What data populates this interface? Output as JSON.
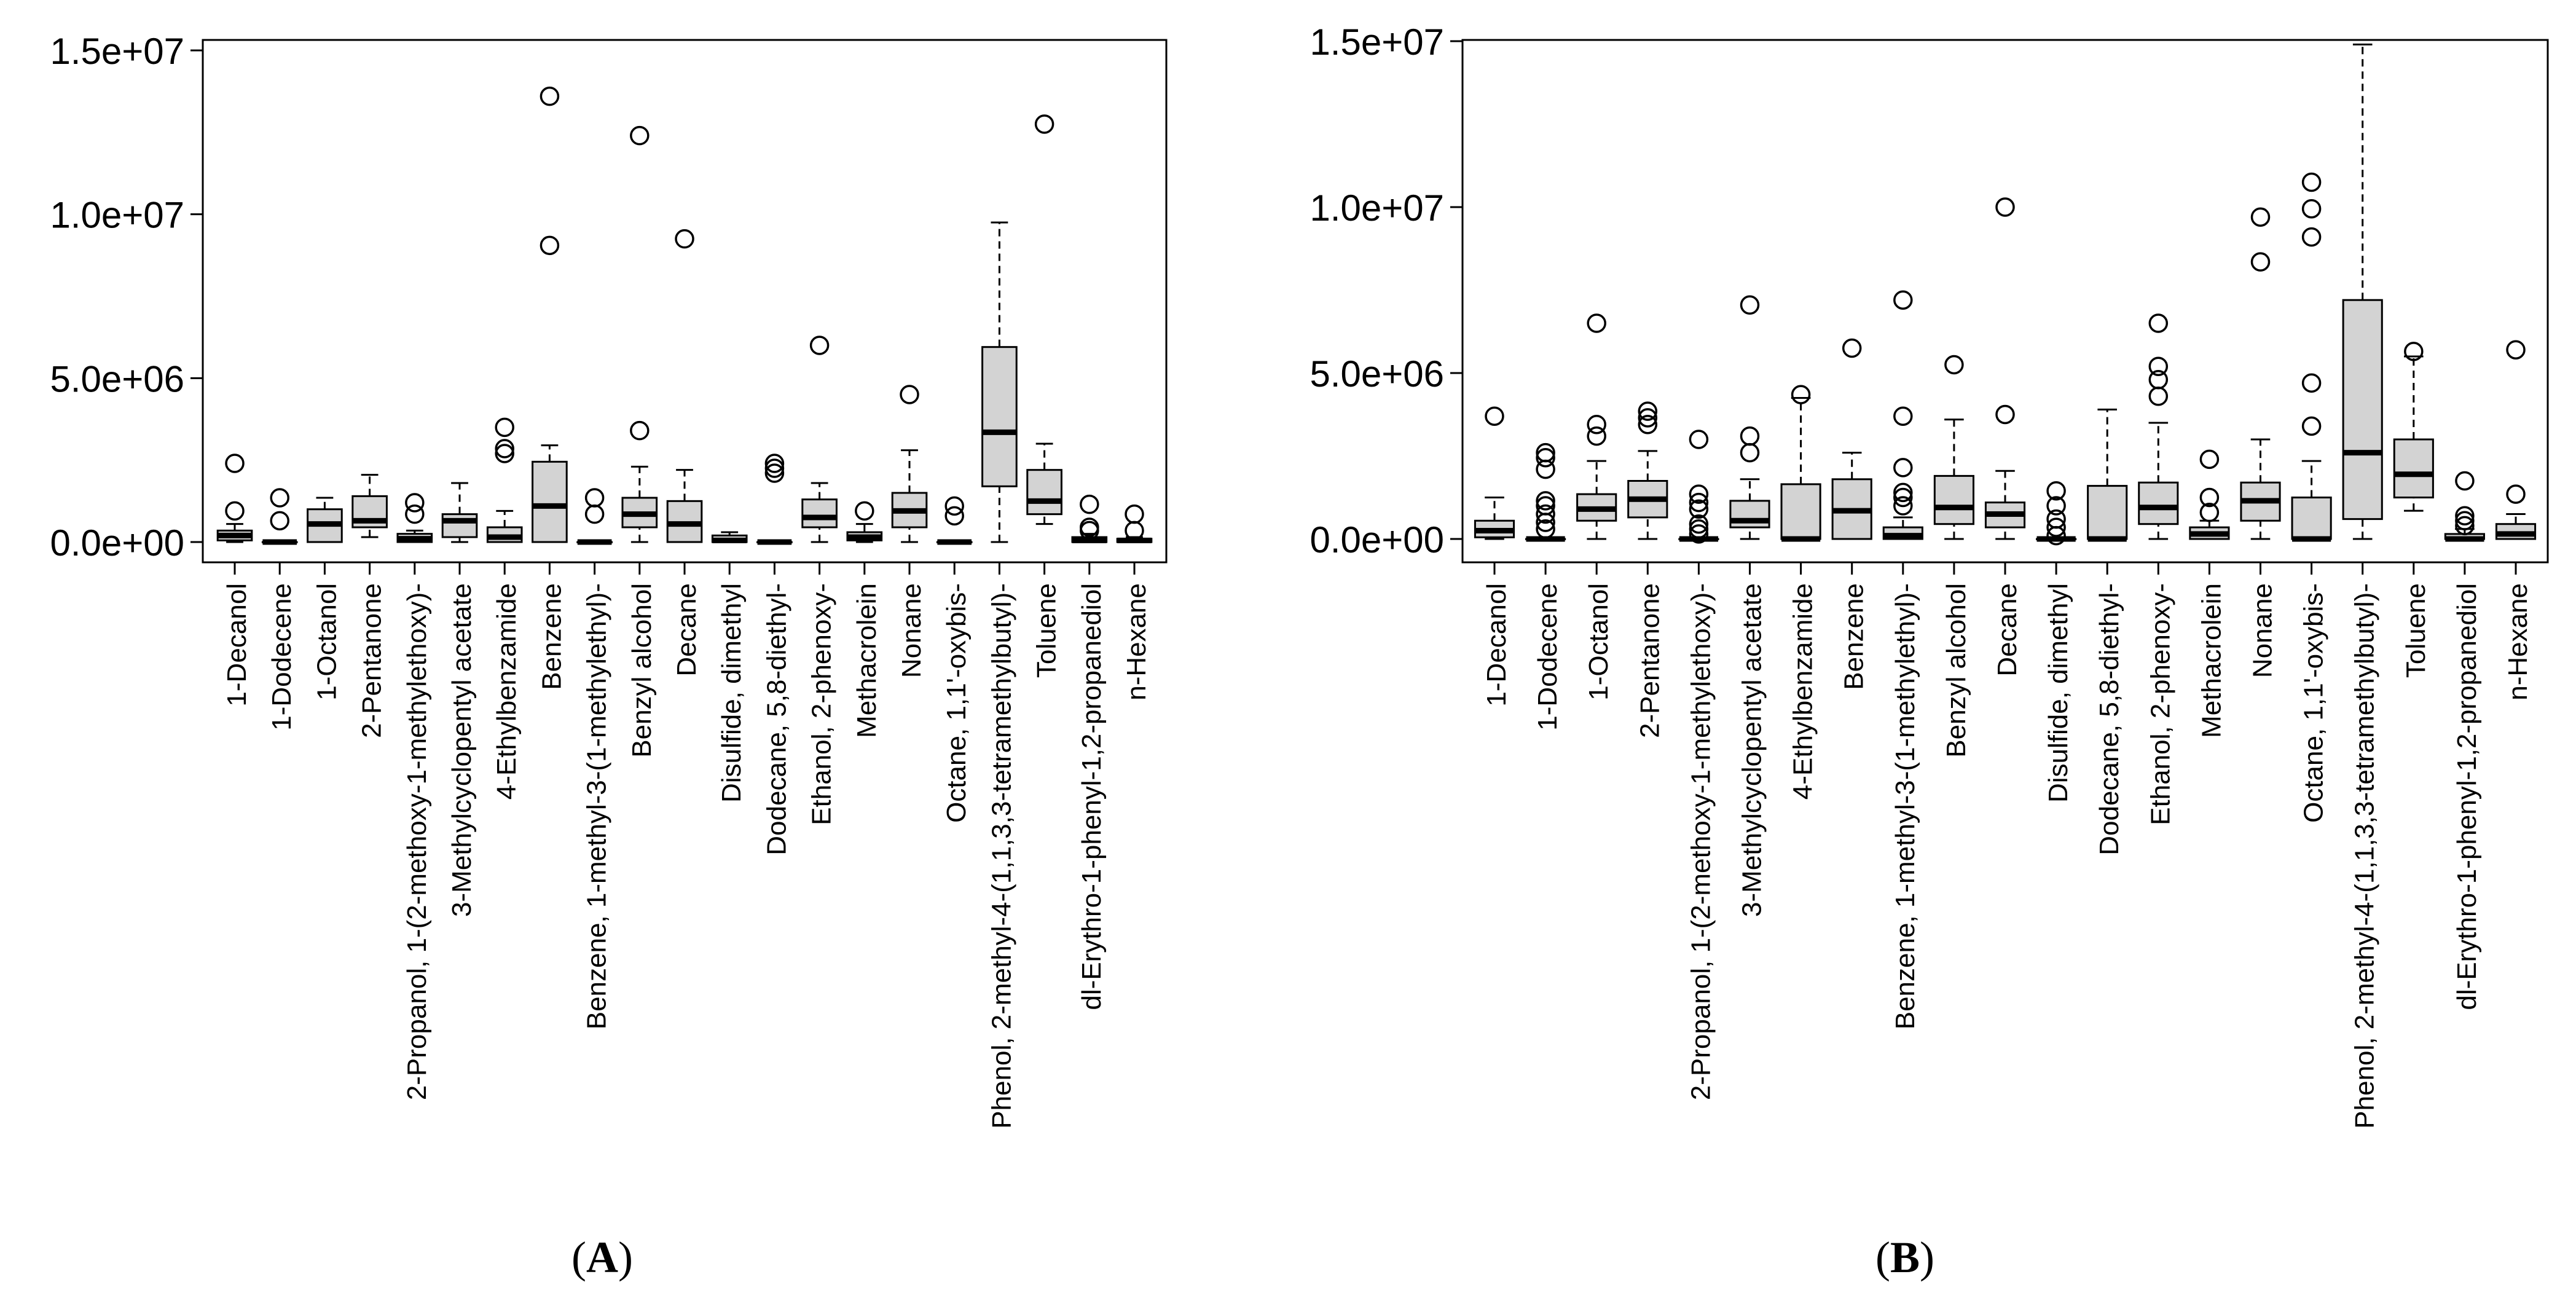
{
  "chart_data": [
    {
      "type": "box",
      "panel_label": "A",
      "ylim": [
        0,
        15000000
      ],
      "yticks": [
        "0.0e+00",
        "5.0e+06",
        "1.0e+07",
        "1.5e+07"
      ],
      "categories": [
        "1-Decanol",
        "1-Dodecene",
        "1-Octanol",
        "2-Pentanone",
        "2-Propanol, 1-(2-methoxy-1-methylethoxy)-",
        "3-Methylcyclopentyl acetate",
        "4-Ethylbenzamide",
        "Benzene",
        "Benzene, 1-methyl-3-(1-methylethyl)-",
        "Benzyl alcohol",
        "Decane",
        "Disulfide, dimethyl",
        "Dodecane, 5,8-diethyl-",
        "Ethanol, 2-phenoxy-",
        "Methacrolein",
        "Nonane",
        "Octane, 1,1'-oxybis-",
        "Phenol, 2-methyl-4-(1,1,3,3-tetramethylbutyl)-",
        "Toluene",
        "dl-Erythro-1-phenyl-1,2-propanediol",
        "n-Hexane"
      ],
      "boxes": [
        {
          "min": 0,
          "q1": 50000,
          "median": 200000,
          "q3": 350000,
          "max": 550000,
          "outliers": [
            950000,
            2400000
          ]
        },
        {
          "min": 0,
          "q1": 0,
          "median": 0,
          "q3": 0,
          "max": 0,
          "outliers": [
            650000,
            1350000
          ]
        },
        {
          "min": 0,
          "q1": 0,
          "median": 550000,
          "q3": 1000000,
          "max": 1350000,
          "outliers": []
        },
        {
          "min": 150000,
          "q1": 450000,
          "median": 650000,
          "q3": 1400000,
          "max": 2050000,
          "outliers": []
        },
        {
          "min": 0,
          "q1": 0,
          "median": 100000,
          "q3": 250000,
          "max": 350000,
          "outliers": [
            850000,
            1200000
          ]
        },
        {
          "min": 0,
          "q1": 150000,
          "median": 650000,
          "q3": 850000,
          "max": 1800000,
          "outliers": []
        },
        {
          "min": 0,
          "q1": 0,
          "median": 150000,
          "q3": 450000,
          "max": 950000,
          "outliers": [
            2700000,
            2850000,
            3500000
          ]
        },
        {
          "min": 0,
          "q1": 0,
          "median": 1100000,
          "q3": 2450000,
          "max": 2950000,
          "outliers": [
            9050000,
            13600000
          ]
        },
        {
          "min": 0,
          "q1": 0,
          "median": 0,
          "q3": 0,
          "max": 0,
          "outliers": [
            850000,
            1350000
          ]
        },
        {
          "min": 0,
          "q1": 450000,
          "median": 850000,
          "q3": 1350000,
          "max": 2300000,
          "outliers": [
            3400000,
            12400000
          ]
        },
        {
          "min": 0,
          "q1": 0,
          "median": 550000,
          "q3": 1250000,
          "max": 2200000,
          "outliers": [
            9250000
          ]
        },
        {
          "min": 0,
          "q1": 0,
          "median": 50000,
          "q3": 200000,
          "max": 300000,
          "outliers": []
        },
        {
          "min": 0,
          "q1": 0,
          "median": 0,
          "q3": 0,
          "max": 0,
          "outliers": [
            2100000,
            2250000,
            2400000
          ]
        },
        {
          "min": 0,
          "q1": 450000,
          "median": 750000,
          "q3": 1300000,
          "max": 1800000,
          "outliers": [
            6000000
          ]
        },
        {
          "min": 0,
          "q1": 50000,
          "median": 150000,
          "q3": 300000,
          "max": 550000,
          "outliers": [
            950000
          ]
        },
        {
          "min": 0,
          "q1": 450000,
          "median": 950000,
          "q3": 1500000,
          "max": 2800000,
          "outliers": [
            4500000
          ]
        },
        {
          "min": 0,
          "q1": 0,
          "median": 0,
          "q3": 0,
          "max": 0,
          "outliers": [
            800000,
            1100000
          ]
        },
        {
          "min": 0,
          "q1": 1700000,
          "median": 3350000,
          "q3": 5950000,
          "max": 9750000,
          "outliers": []
        },
        {
          "min": 550000,
          "q1": 850000,
          "median": 1250000,
          "q3": 2200000,
          "max": 3000000,
          "outliers": [
            12750000
          ]
        },
        {
          "min": 0,
          "q1": 0,
          "median": 50000,
          "q3": 150000,
          "max": 250000,
          "outliers": [
            350000,
            450000,
            1150000
          ]
        },
        {
          "min": 0,
          "q1": 0,
          "median": 50000,
          "q3": 100000,
          "max": 150000,
          "outliers": [
            350000,
            850000
          ]
        }
      ]
    },
    {
      "type": "box",
      "panel_label": "B",
      "ylim": [
        0,
        15000000
      ],
      "yticks": [
        "0.0e+00",
        "5.0e+06",
        "1.0e+07",
        "1.5e+07"
      ],
      "categories": [
        "1-Decanol",
        "1-Dodecene",
        "1-Octanol",
        "2-Pentanone",
        "2-Propanol, 1-(2-methoxy-1-methylethoxy)-",
        "3-Methylcyclopentyl acetate",
        "4-Ethylbenzamide",
        "Benzene",
        "Benzene, 1-methyl-3-(1-methylethyl)-",
        "Benzyl alcohol",
        "Decane",
        "Disulfide, dimethyl",
        "Dodecane, 5,8-diethyl-",
        "Ethanol, 2-phenoxy-",
        "Methacrolein",
        "Nonane",
        "Octane, 1,1'-oxybis-",
        "Phenol, 2-methyl-4-(1,1,3,3-tetramethylbutyl)-",
        "Toluene",
        "dl-Erythro-1-phenyl-1,2-propanediol",
        "n-Hexane"
      ],
      "boxes": [
        {
          "min": 0,
          "q1": 50000,
          "median": 250000,
          "q3": 550000,
          "max": 1250000,
          "outliers": [
            3700000
          ]
        },
        {
          "min": 0,
          "q1": 0,
          "median": 0,
          "q3": 0,
          "max": 0,
          "outliers": [
            300000,
            500000,
            750000,
            1000000,
            1150000,
            2100000,
            2450000,
            2600000
          ]
        },
        {
          "min": 0,
          "q1": 550000,
          "median": 900000,
          "q3": 1350000,
          "max": 2350000,
          "outliers": [
            3100000,
            3450000,
            6500000
          ]
        },
        {
          "min": 0,
          "q1": 650000,
          "median": 1200000,
          "q3": 1750000,
          "max": 2650000,
          "outliers": [
            3450000,
            3650000,
            3850000
          ]
        },
        {
          "min": 0,
          "q1": 0,
          "median": 0,
          "q3": 0,
          "max": 0,
          "outliers": [
            150000,
            300000,
            450000,
            900000,
            1100000,
            1350000,
            3000000
          ]
        },
        {
          "min": 0,
          "q1": 350000,
          "median": 550000,
          "q3": 1150000,
          "max": 1800000,
          "outliers": [
            2600000,
            3100000,
            7050000
          ]
        },
        {
          "min": 0,
          "q1": 0,
          "median": 0,
          "q3": 1650000,
          "max": 4250000,
          "outliers": [
            4350000
          ]
        },
        {
          "min": 0,
          "q1": 0,
          "median": 850000,
          "q3": 1800000,
          "max": 2600000,
          "outliers": [
            5750000
          ]
        },
        {
          "min": 0,
          "q1": 0,
          "median": 100000,
          "q3": 350000,
          "max": 650000,
          "outliers": [
            1000000,
            1250000,
            1400000,
            2150000,
            3700000,
            7200000
          ]
        },
        {
          "min": 0,
          "q1": 450000,
          "median": 950000,
          "q3": 1900000,
          "max": 3600000,
          "outliers": [
            5250000
          ]
        },
        {
          "min": 0,
          "q1": 350000,
          "median": 750000,
          "q3": 1100000,
          "max": 2050000,
          "outliers": [
            3750000,
            10000000
          ]
        },
        {
          "min": 0,
          "q1": 0,
          "median": 0,
          "q3": 0,
          "max": 0,
          "outliers": [
            100000,
            350000,
            600000,
            1000000,
            1450000
          ]
        },
        {
          "min": 0,
          "q1": 0,
          "median": 0,
          "q3": 1600000,
          "max": 3900000,
          "outliers": []
        },
        {
          "min": 0,
          "q1": 450000,
          "median": 950000,
          "q3": 1700000,
          "max": 3500000,
          "outliers": [
            4300000,
            4800000,
            5200000,
            6500000
          ]
        },
        {
          "min": 0,
          "q1": 0,
          "median": 150000,
          "q3": 350000,
          "max": 550000,
          "outliers": [
            800000,
            1250000,
            2400000
          ]
        },
        {
          "min": 0,
          "q1": 550000,
          "median": 1150000,
          "q3": 1700000,
          "max": 3000000,
          "outliers": [
            8350000,
            9700000
          ]
        },
        {
          "min": 0,
          "q1": 0,
          "median": 0,
          "q3": 1250000,
          "max": 2350000,
          "outliers": [
            3400000,
            4700000,
            9100000,
            9950000,
            10750000
          ]
        },
        {
          "min": 0,
          "q1": 600000,
          "median": 2600000,
          "q3": 7200000,
          "max": 14900000,
          "outliers": []
        },
        {
          "min": 850000,
          "q1": 1250000,
          "median": 1950000,
          "q3": 3000000,
          "max": 5500000,
          "outliers": [
            5650000
          ]
        },
        {
          "min": 0,
          "q1": 0,
          "median": 0,
          "q3": 150000,
          "max": 300000,
          "outliers": [
            400000,
            550000,
            700000,
            1750000
          ]
        },
        {
          "min": 0,
          "q1": 0,
          "median": 150000,
          "q3": 450000,
          "max": 750000,
          "outliers": [
            1350000,
            5700000
          ]
        }
      ]
    }
  ]
}
